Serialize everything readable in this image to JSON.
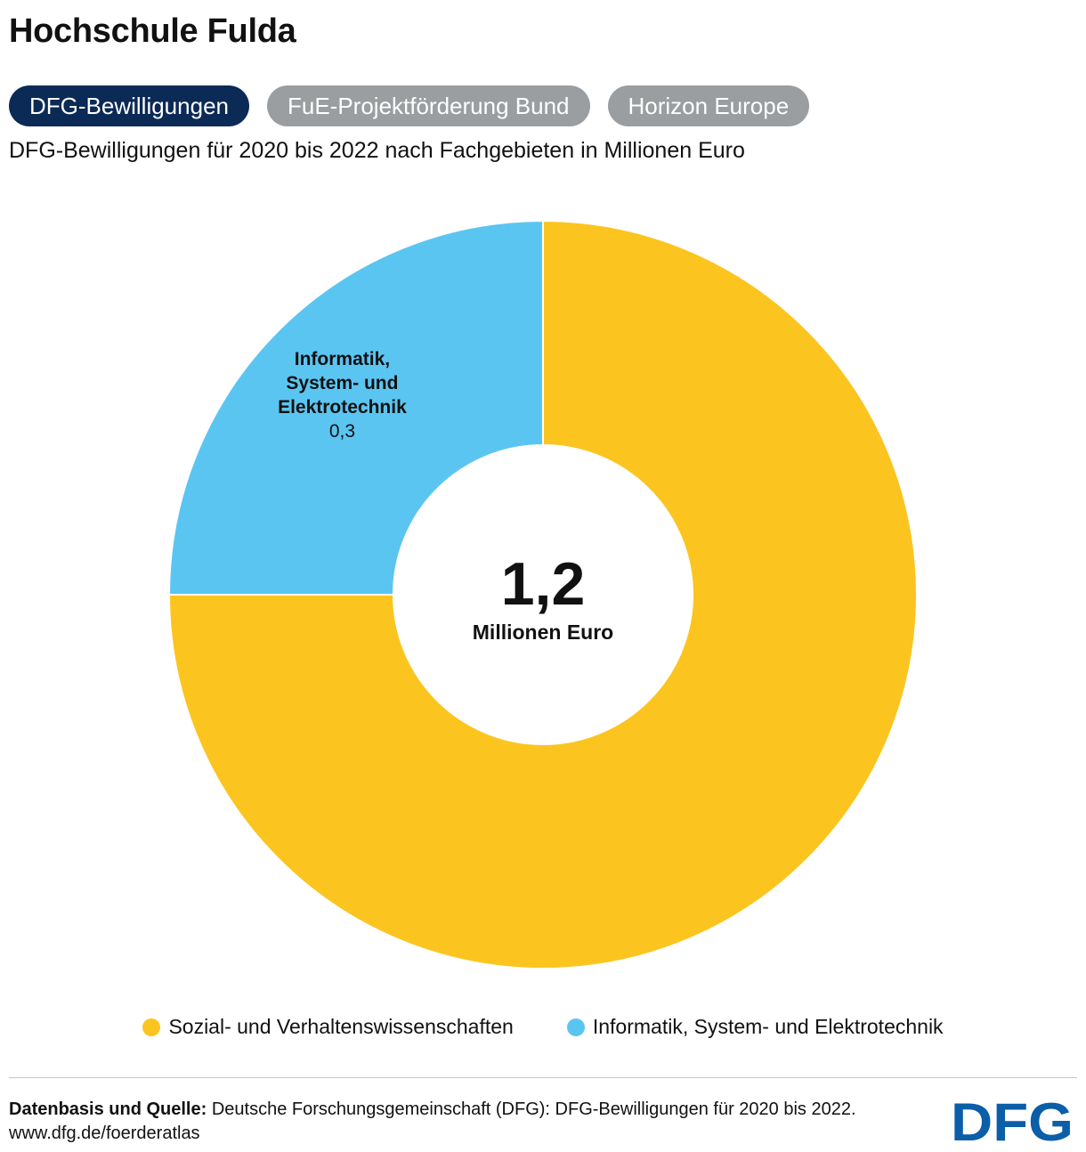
{
  "header": {
    "title": "Hochschule Fulda",
    "subtitle": "DFG-Bewilligungen für 2020 bis 2022 nach Fachgebieten in Millionen Euro"
  },
  "tabs": [
    {
      "label": "DFG-Bewilligungen",
      "active": true
    },
    {
      "label": "FuE-Projektförderung Bund",
      "active": false
    },
    {
      "label": "Horizon Europe",
      "active": false
    }
  ],
  "chart_data": {
    "type": "pie",
    "donut": true,
    "unit": "Millionen Euro",
    "total_value": "1,2",
    "total_unit": "Millionen Euro",
    "slices": [
      {
        "name": "Sozial- und Verhaltenswissenschaften",
        "value": 0.9,
        "color": "#fcc41f",
        "label_lines": [],
        "value_label": ""
      },
      {
        "name": "Informatik, System- und Elektrotechnik",
        "value": 0.3,
        "color": "#5bc5f2",
        "label_lines": [
          "Informatik,",
          "System- und",
          "Elektrotechnik"
        ],
        "value_label": "0,3"
      }
    ],
    "legend_position": "bottom"
  },
  "footer": {
    "source_label": "Datenbasis und Quelle:",
    "source_text": "Deutsche Forschungsgemeinschaft (DFG): DFG-Bewilligungen für 2020 bis 2022.",
    "url": "www.dfg.de/foerderatlas",
    "logo_text": "DFG",
    "logo_color": "#0b5ea8"
  }
}
